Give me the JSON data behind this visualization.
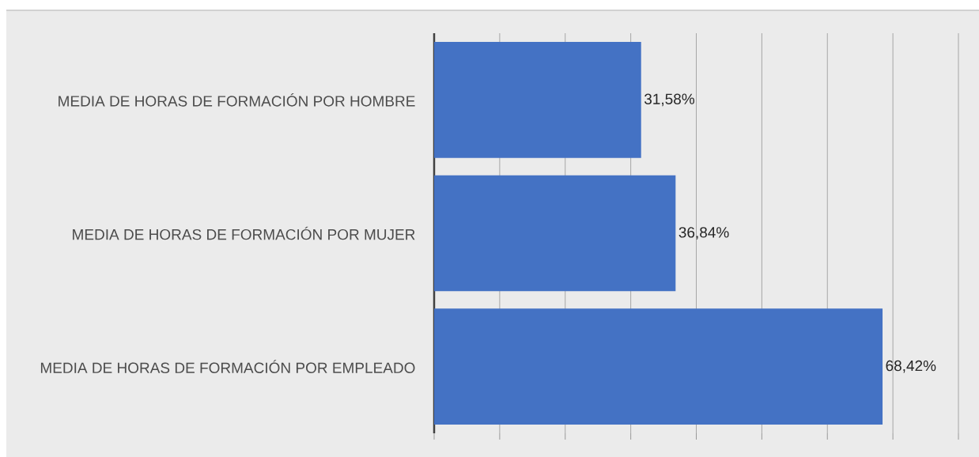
{
  "chart_data": {
    "type": "bar",
    "orientation": "horizontal",
    "categories": [
      "MEDIA DE HORAS DE FORMACIÓN POR HOMBRE",
      "MEDIA DE HORAS DE FORMACIÓN POR MUJER",
      "MEDIA DE HORAS DE FORMACIÓN POR EMPLEADO"
    ],
    "values": [
      31.58,
      36.84,
      68.42
    ],
    "value_labels": [
      "31,58%",
      "36,84%",
      "68,42%"
    ],
    "color": "#4472c4",
    "xlim": [
      0,
      80
    ],
    "xticks": [
      {
        "value": 0,
        "label": null
      },
      {
        "value": 10,
        "label": null
      },
      {
        "value": 20,
        "label": null
      },
      {
        "value": 30,
        "label": null
      },
      {
        "value": 40,
        "label": null
      },
      {
        "value": 50,
        "label": null
      },
      {
        "value": 60,
        "label": null
      },
      {
        "value": 70,
        "label": null
      },
      {
        "value": 80,
        "label": null
      }
    ],
    "grid": "x",
    "tick_labels": "y"
  }
}
